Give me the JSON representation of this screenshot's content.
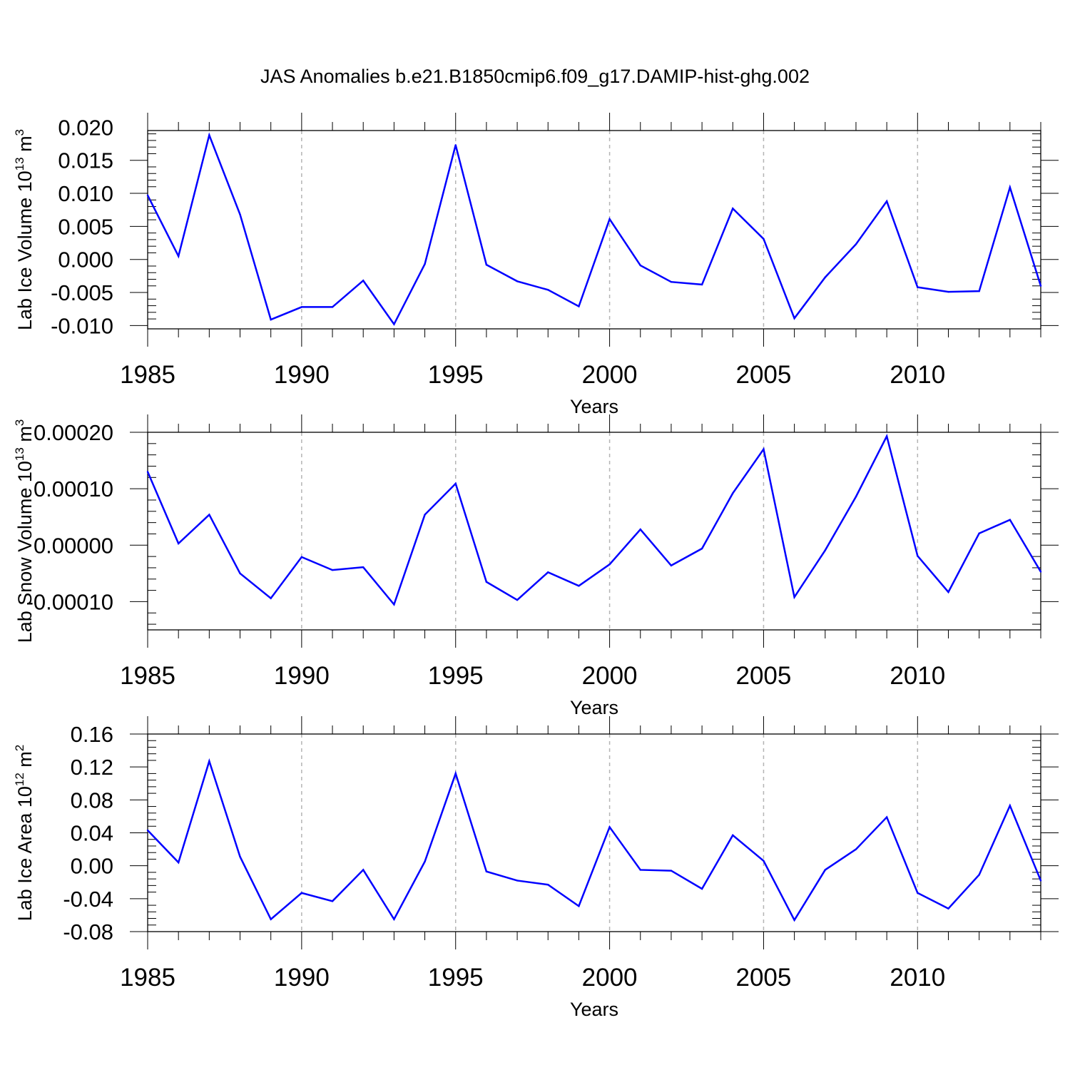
{
  "title": "JAS Anomalies b.e21.B1850cmip6.f09_g17.DAMIP-hist-ghg.002",
  "colors": {
    "line": "#0000ff",
    "axis": "#000000",
    "grid": "#b4b4b4",
    "background": "#ffffff"
  },
  "chart_data": [
    {
      "type": "line",
      "ylabel": "Lab Ice Volume 10",
      "ylabel_sup": "13",
      "ylabel_unit": " m",
      "ylabel_unit_sup": "3",
      "xlabel": "Years",
      "xlim": [
        1985,
        2014
      ],
      "ylim": [
        -0.0105,
        0.0195
      ],
      "yticks": [
        -0.01,
        -0.005,
        0.0,
        0.005,
        0.01,
        0.015,
        0.02
      ],
      "yticklabels": [
        "-0.010",
        "-0.005",
        "0.000",
        "0.005",
        "0.010",
        "0.015",
        "0.020"
      ],
      "xticks": [
        1985,
        1990,
        1995,
        2000,
        2005,
        2010
      ],
      "xticklabels": [
        "1985",
        "1990",
        "1995",
        "2000",
        "2005",
        "2010"
      ],
      "grid_x": [
        1990,
        1995,
        2000,
        2005,
        2010
      ],
      "x": [
        1985,
        1986,
        1987,
        1988,
        1989,
        1990,
        1991,
        1992,
        1993,
        1994,
        1995,
        1996,
        1997,
        1998,
        1999,
        2000,
        2001,
        2002,
        2003,
        2004,
        2005,
        2006,
        2007,
        2008,
        2009,
        2010,
        2011,
        2012,
        2013,
        2014
      ],
      "values": [
        0.0097,
        0.0005,
        0.0188,
        0.0068,
        -0.0091,
        -0.0072,
        -0.0072,
        -0.0032,
        -0.0098,
        -0.0007,
        0.0173,
        -0.0008,
        -0.0033,
        -0.0046,
        -0.0071,
        0.0061,
        -0.0009,
        -0.0034,
        -0.0038,
        0.0077,
        0.0031,
        -0.0089,
        -0.0027,
        0.0023,
        0.0088,
        -0.0042,
        -0.0049,
        -0.0048,
        0.0109,
        -0.004
      ]
    },
    {
      "type": "line",
      "ylabel": "Lab Snow Volume 10",
      "ylabel_sup": "13",
      "ylabel_unit": " m",
      "ylabel_unit_sup": "3",
      "xlabel": "Years",
      "xlim": [
        1985,
        2014
      ],
      "ylim": [
        -0.00015,
        0.0002
      ],
      "yticks": [
        -0.0001,
        0.0,
        0.0001,
        0.0002
      ],
      "yticklabels": [
        "-0.00010",
        "0.00000",
        "0.00010",
        "0.00020"
      ],
      "xticks": [
        1985,
        1990,
        1995,
        2000,
        2005,
        2010
      ],
      "xticklabels": [
        "1985",
        "1990",
        "1995",
        "2000",
        "2005",
        "2010"
      ],
      "grid_x": [
        1990,
        1995,
        2000,
        2005,
        2010
      ],
      "x": [
        1985,
        1986,
        1987,
        1988,
        1989,
        1990,
        1991,
        1992,
        1993,
        1994,
        1995,
        1996,
        1997,
        1998,
        1999,
        2000,
        2001,
        2002,
        2003,
        2004,
        2005,
        2006,
        2007,
        2008,
        2009,
        2010,
        2011,
        2012,
        2013,
        2014
      ],
      "values": [
        0.00013,
        3e-06,
        5.4e-05,
        -5e-05,
        -9.4e-05,
        -2.1e-05,
        -4.4e-05,
        -3.9e-05,
        -0.000105,
        5.4e-05,
        0.000109,
        -6.5e-05,
        -9.7e-05,
        -4.8e-05,
        -7.2e-05,
        -3.4e-05,
        2.8e-05,
        -3.6e-05,
        -6e-06,
        9.2e-05,
        0.00017,
        -9.2e-05,
        -9e-06,
        8.6e-05,
        0.000193,
        -1.9e-05,
        -8.3e-05,
        2.1e-05,
        4.5e-05,
        -4.7e-05
      ]
    },
    {
      "type": "line",
      "ylabel": "Lab Ice Area 10",
      "ylabel_sup": "12",
      "ylabel_unit": " m",
      "ylabel_unit_sup": "2",
      "xlabel": "Years",
      "xlim": [
        1985,
        2014
      ],
      "ylim": [
        -0.08,
        0.16
      ],
      "yticks": [
        -0.08,
        -0.04,
        0.0,
        0.04,
        0.08,
        0.12,
        0.16
      ],
      "yticklabels": [
        "-0.08",
        "-0.04",
        "0.00",
        "0.04",
        "0.08",
        "0.12",
        "0.16"
      ],
      "xticks": [
        1985,
        1990,
        1995,
        2000,
        2005,
        2010
      ],
      "xticklabels": [
        "1985",
        "1990",
        "1995",
        "2000",
        "2005",
        "2010"
      ],
      "grid_x": [
        1990,
        1995,
        2000,
        2005,
        2010
      ],
      "x": [
        1985,
        1986,
        1987,
        1988,
        1989,
        1990,
        1991,
        1992,
        1993,
        1994,
        1995,
        1996,
        1997,
        1998,
        1999,
        2000,
        2001,
        2002,
        2003,
        2004,
        2005,
        2006,
        2007,
        2008,
        2009,
        2010,
        2011,
        2012,
        2013,
        2014
      ],
      "values": [
        0.043,
        0.004,
        0.127,
        0.011,
        -0.065,
        -0.033,
        -0.043,
        -0.005,
        -0.065,
        0.005,
        0.112,
        -0.007,
        -0.018,
        -0.023,
        -0.049,
        0.047,
        -0.005,
        -0.006,
        -0.028,
        0.037,
        0.006,
        -0.066,
        -0.005,
        0.02,
        0.059,
        -0.033,
        -0.052,
        -0.011,
        0.073,
        -0.018
      ]
    }
  ]
}
